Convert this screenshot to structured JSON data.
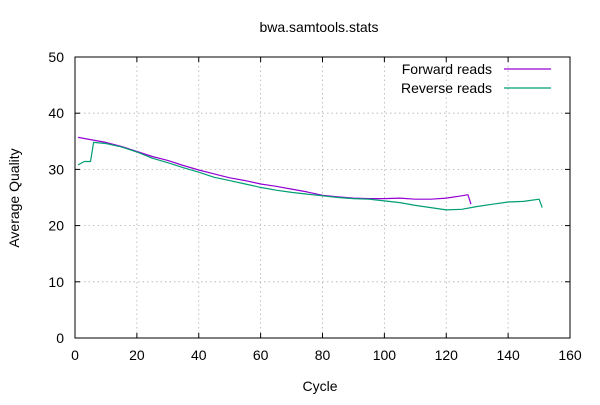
{
  "chart_data": {
    "type": "line",
    "title": "bwa.samtools.stats",
    "xlabel": "Cycle",
    "ylabel": "Average Quality",
    "xlim": [
      0,
      160
    ],
    "ylim": [
      0,
      50
    ],
    "xticks": [
      0,
      20,
      40,
      60,
      80,
      100,
      120,
      140,
      160
    ],
    "yticks": [
      0,
      10,
      20,
      30,
      40,
      50
    ],
    "grid": true,
    "legend_position": "top-right",
    "series": [
      {
        "name": "Forward reads",
        "color": "#9400d3",
        "x": [
          1,
          5,
          10,
          15,
          20,
          25,
          30,
          35,
          40,
          45,
          50,
          55,
          60,
          65,
          70,
          75,
          80,
          85,
          90,
          95,
          100,
          105,
          110,
          115,
          120,
          125,
          127,
          128
        ],
        "y": [
          35.7,
          35.3,
          34.8,
          34.1,
          33.2,
          32.3,
          31.6,
          30.7,
          29.9,
          29.2,
          28.5,
          28.0,
          27.4,
          27.0,
          26.5,
          26.0,
          25.4,
          25.1,
          24.9,
          24.8,
          24.8,
          24.9,
          24.7,
          24.7,
          24.9,
          25.3,
          25.5,
          23.8
        ]
      },
      {
        "name": "Reverse reads",
        "color": "#009e73",
        "x": [
          1,
          3,
          5,
          6,
          10,
          15,
          20,
          25,
          30,
          35,
          40,
          45,
          50,
          55,
          60,
          65,
          70,
          75,
          80,
          85,
          90,
          95,
          100,
          105,
          110,
          115,
          120,
          125,
          130,
          135,
          140,
          145,
          150,
          151
        ],
        "y": [
          30.8,
          31.4,
          31.4,
          34.8,
          34.6,
          34.0,
          33.1,
          32.0,
          31.2,
          30.3,
          29.5,
          28.6,
          28.0,
          27.4,
          26.8,
          26.3,
          25.9,
          25.6,
          25.3,
          25.0,
          24.8,
          24.7,
          24.4,
          24.1,
          23.6,
          23.2,
          22.8,
          22.9,
          23.4,
          23.8,
          24.2,
          24.3,
          24.7,
          23.2
        ]
      }
    ]
  }
}
